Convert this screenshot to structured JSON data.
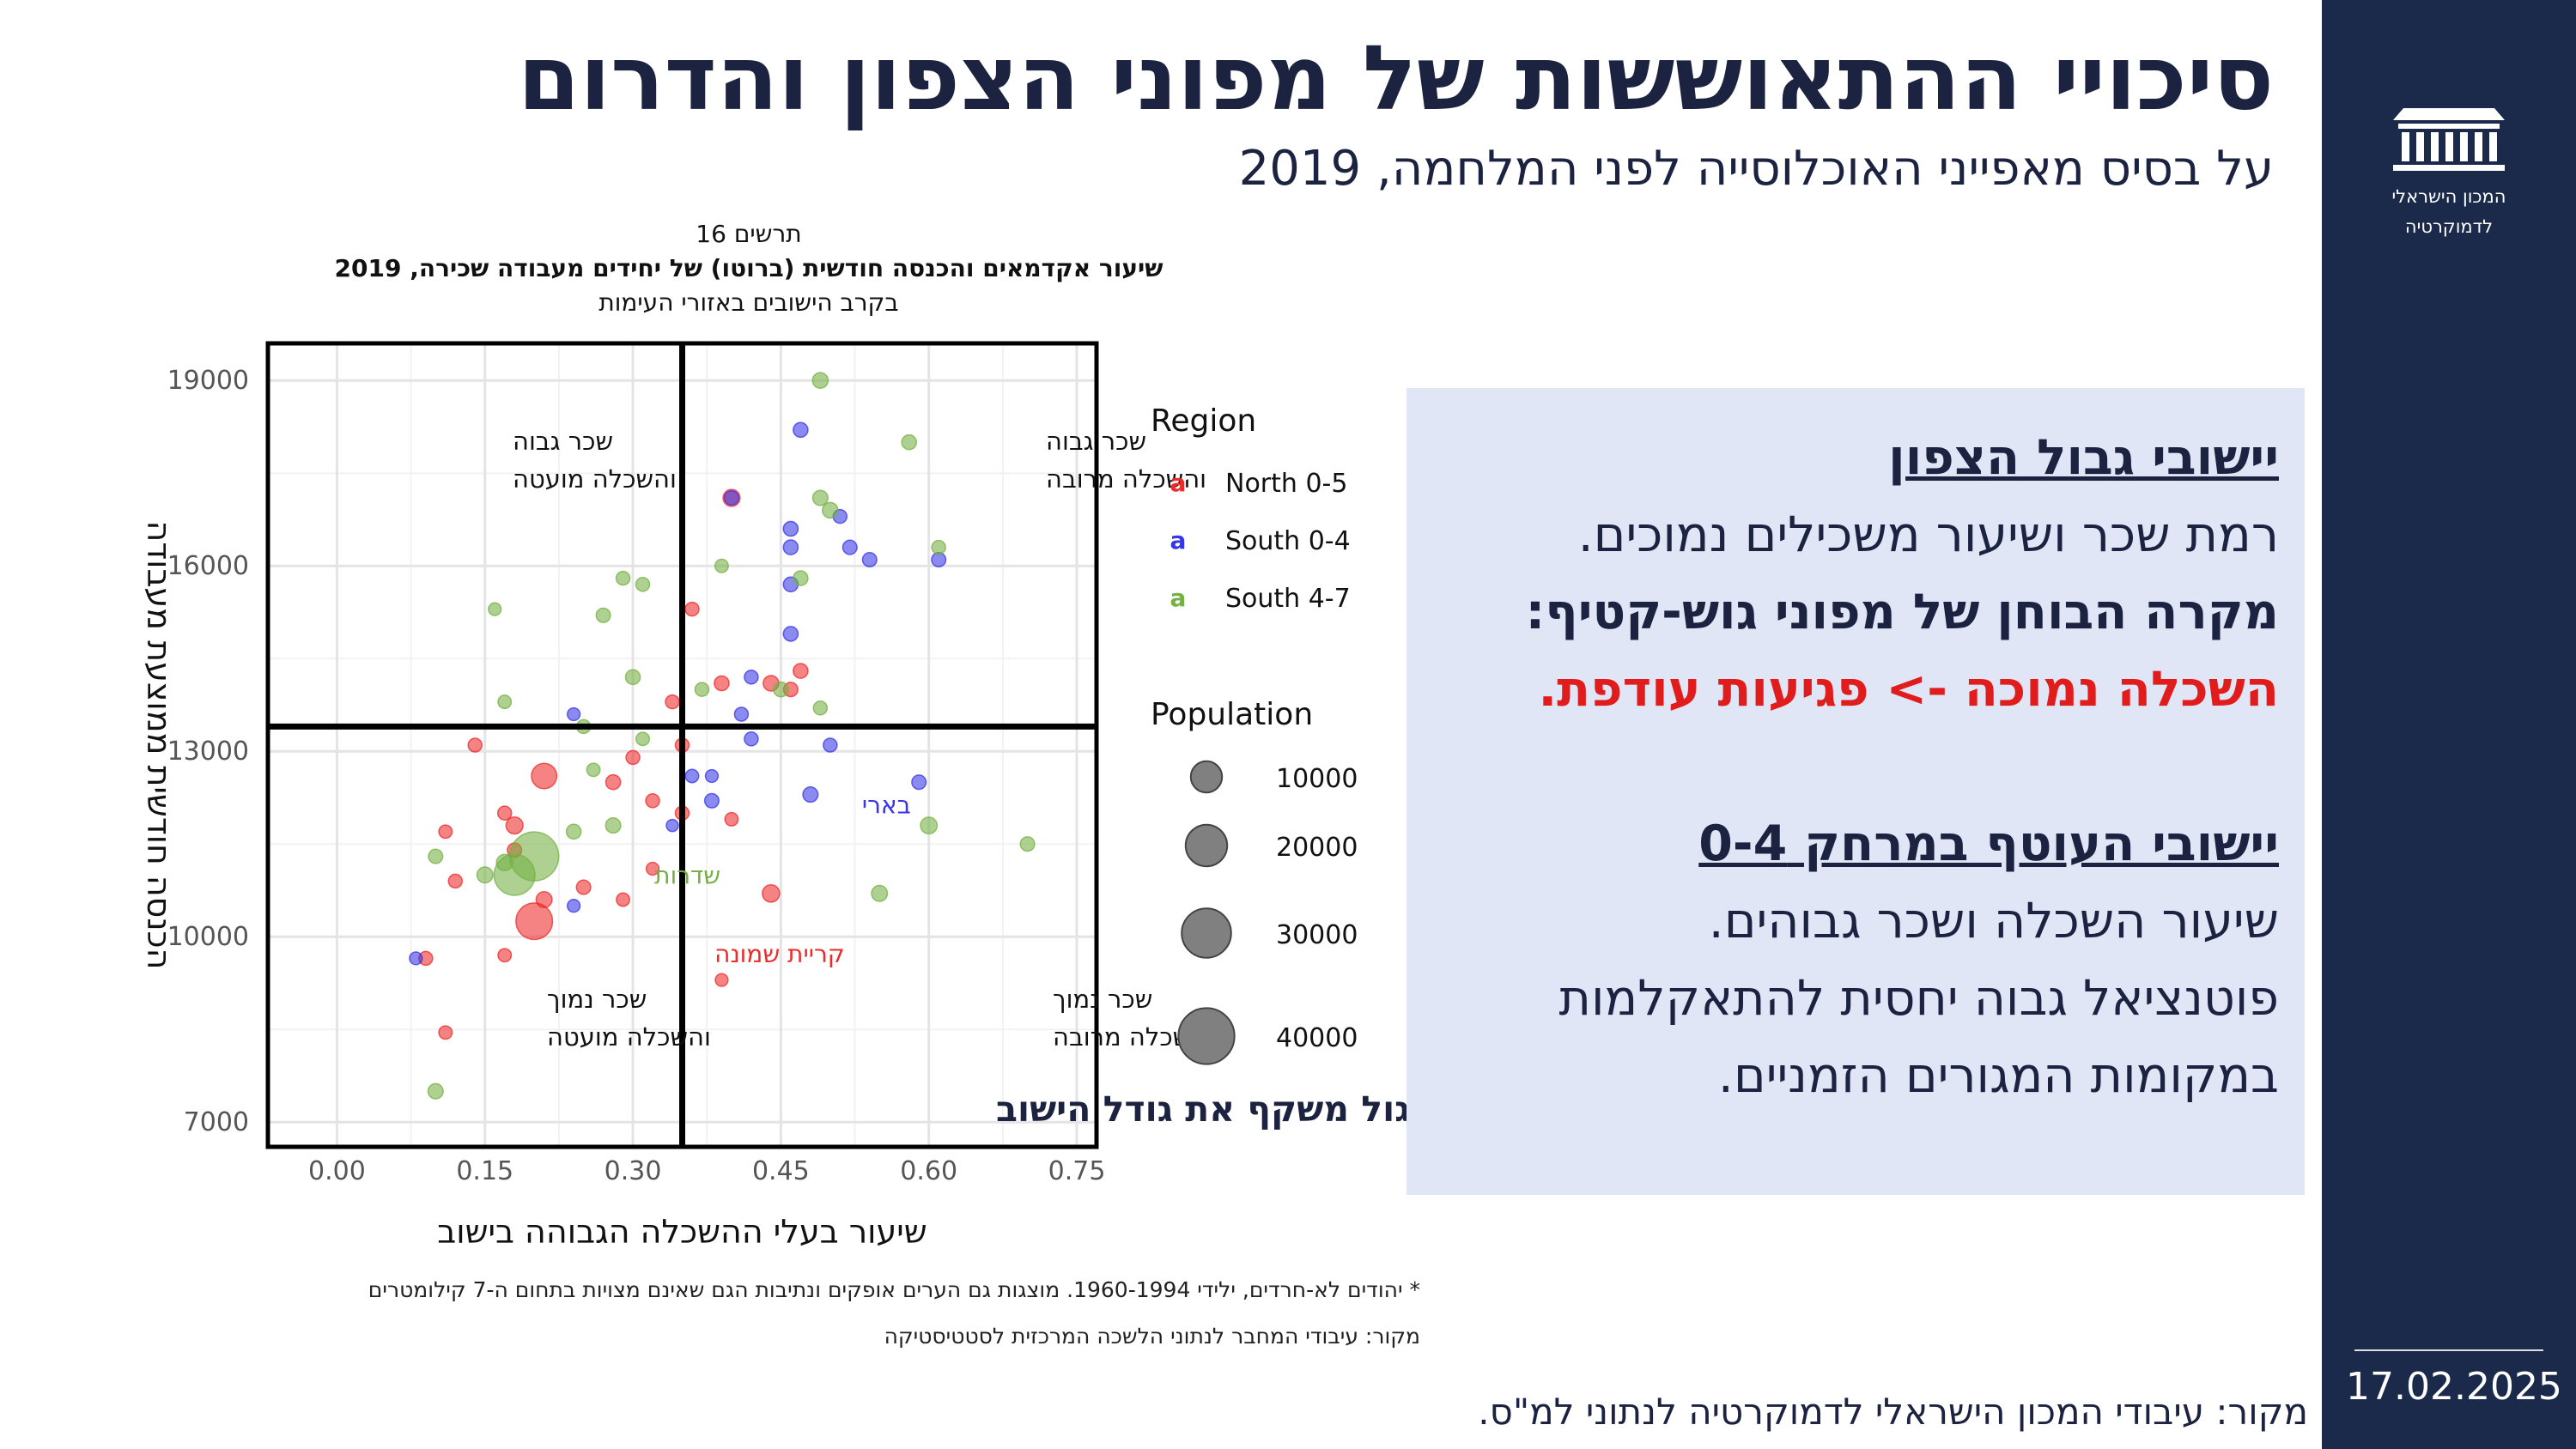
{
  "slide": {
    "title": "סיכויי ההתאוששות של מפוני הצפון והדרום",
    "subtitle": "על בסיס מאפייני האוכלוסייה לפני המלחמה, 2019",
    "date": "17.02.2025",
    "source": "מקור: עיבודי המכון הישראלי לדמוקרטיה לנתוני למ\"ס.",
    "logo_lines": [
      "המכון הישראלי",
      "לדמוקרטיה"
    ]
  },
  "panel": {
    "h1": "יישובי גבול הצפון",
    "l1": "רמת שכר ושיעור משכילים נמוכים.",
    "l2": "מקרה הבוחן של מפוני גוש-קטיף:",
    "l3": "השכלה נמוכה -> פגיעות עודפת.",
    "h2": "יישובי העוטף במרחק 0-4",
    "l4": "שיעור השכלה ושכר גבוהים.",
    "l5": "פוטנציאל גבוה יחסית להתאקלמות",
    "l6": "במקומות המגורים הזמניים."
  },
  "footnotes": {
    "note": "* יהודים לא-חרדים, ילידי 1960-1994. מוצגות גם הערים אופקים ונתיבות הגם שאינם מצויות בתחום ה-7 קילומטרים",
    "source": "מקור: עיבודי המחבר לנתוני הלשכה המרכזית לסטטיסטיקה"
  },
  "chart_data": {
    "type": "scatter",
    "title_lines": [
      "תרשים 16",
      "שיעור אקדמאים והכנסה חודשית (ברוטו) של יחידים מעבודה שכירה, 2019",
      "בקרב הישובים באזורי העימות"
    ],
    "xlabel": "שיעור בעלי ההשכלה הגבוהה בישוב",
    "ylabel": "הכנסה חודשית ממוצעת מעבודה",
    "xlim": [
      -0.07,
      0.77
    ],
    "ylim": [
      6600,
      19600
    ],
    "x_ticks": [
      "0.00",
      "0.15",
      "0.30",
      "0.45",
      "0.60",
      "0.75"
    ],
    "y_ticks": [
      "7000",
      "10000",
      "13000",
      "16000",
      "19000"
    ],
    "grid": true,
    "ref_lines": {
      "x": 0.35,
      "y": 13400
    },
    "quadrant_labels": {
      "top_left": [
        "שכר גבוה",
        "והשכלה מועטה"
      ],
      "top_right": [
        "שכר גבוה",
        "והשכלה מרובה"
      ],
      "bottom_left": [
        "שכר נמוך",
        "והשכלה מועטה"
      ],
      "bottom_right": [
        "שכר נמוך",
        "והשכלה מרובה"
      ]
    },
    "size_note": "גודל העיגול משקף את גודל הישוב",
    "legend_region_title": "Region",
    "legend_size_title": "Population",
    "series": [
      {
        "name": "North 0-5",
        "color": "#ee2a2a",
        "points": [
          {
            "x": 0.21,
            "y": 12600,
            "pop": 5000
          },
          {
            "x": 0.2,
            "y": 10250,
            "pop": 13000,
            "label": "קריית שמונה"
          },
          {
            "x": 0.18,
            "y": 11800,
            "pop": 1500
          },
          {
            "x": 0.17,
            "y": 12000,
            "pop": 700
          },
          {
            "x": 0.18,
            "y": 11400,
            "pop": 800
          },
          {
            "x": 0.21,
            "y": 10600,
            "pop": 1200
          },
          {
            "x": 0.25,
            "y": 10800,
            "pop": 800
          },
          {
            "x": 0.28,
            "y": 12500,
            "pop": 900
          },
          {
            "x": 0.3,
            "y": 12900,
            "pop": 700
          },
          {
            "x": 0.32,
            "y": 12200,
            "pop": 700
          },
          {
            "x": 0.35,
            "y": 12000,
            "pop": 700
          },
          {
            "x": 0.29,
            "y": 10600,
            "pop": 600
          },
          {
            "x": 0.4,
            "y": 17100,
            "pop": 1500
          },
          {
            "x": 0.39,
            "y": 14100,
            "pop": 900
          },
          {
            "x": 0.44,
            "y": 10700,
            "pop": 1600
          },
          {
            "x": 0.4,
            "y": 11900,
            "pop": 600
          },
          {
            "x": 0.36,
            "y": 15300,
            "pop": 700
          },
          {
            "x": 0.35,
            "y": 13100,
            "pop": 700
          },
          {
            "x": 0.34,
            "y": 13800,
            "pop": 700
          },
          {
            "x": 0.44,
            "y": 14100,
            "pop": 1100
          },
          {
            "x": 0.46,
            "y": 14000,
            "pop": 800
          },
          {
            "x": 0.47,
            "y": 14300,
            "pop": 900
          },
          {
            "x": 0.11,
            "y": 11700,
            "pop": 600
          },
          {
            "x": 0.12,
            "y": 10900,
            "pop": 700
          },
          {
            "x": 0.09,
            "y": 9650,
            "pop": 700
          },
          {
            "x": 0.11,
            "y": 8450,
            "pop": 600
          },
          {
            "x": 0.39,
            "y": 9300,
            "pop": 500
          },
          {
            "x": 0.14,
            "y": 13100,
            "pop": 700
          },
          {
            "x": 0.32,
            "y": 11100,
            "pop": 500
          },
          {
            "x": 0.17,
            "y": 9700,
            "pop": 600
          }
        ]
      },
      {
        "name": "South 0-4",
        "color": "#3636e6",
        "points": [
          {
            "x": 0.47,
            "y": 18200,
            "pop": 900
          },
          {
            "x": 0.4,
            "y": 17100,
            "pop": 800
          },
          {
            "x": 0.46,
            "y": 16600,
            "pop": 900
          },
          {
            "x": 0.46,
            "y": 16300,
            "pop": 900
          },
          {
            "x": 0.51,
            "y": 16800,
            "pop": 700
          },
          {
            "x": 0.52,
            "y": 16300,
            "pop": 800
          },
          {
            "x": 0.54,
            "y": 16100,
            "pop": 800
          },
          {
            "x": 0.61,
            "y": 16100,
            "pop": 800
          },
          {
            "x": 0.46,
            "y": 15700,
            "pop": 900
          },
          {
            "x": 0.46,
            "y": 14900,
            "pop": 900
          },
          {
            "x": 0.42,
            "y": 14200,
            "pop": 700
          },
          {
            "x": 0.41,
            "y": 13600,
            "pop": 700
          },
          {
            "x": 0.42,
            "y": 13200,
            "pop": 700
          },
          {
            "x": 0.5,
            "y": 13100,
            "pop": 700
          },
          {
            "x": 0.36,
            "y": 12600,
            "pop": 600
          },
          {
            "x": 0.38,
            "y": 12600,
            "pop": 500
          },
          {
            "x": 0.38,
            "y": 12200,
            "pop": 800
          },
          {
            "x": 0.48,
            "y": 12300,
            "pop": 1000,
            "label": "בארי"
          },
          {
            "x": 0.34,
            "y": 11800,
            "pop": 400
          },
          {
            "x": 0.24,
            "y": 10500,
            "pop": 500
          },
          {
            "x": 0.08,
            "y": 9650,
            "pop": 500
          },
          {
            "x": 0.24,
            "y": 13600,
            "pop": 500
          },
          {
            "x": 0.59,
            "y": 12500,
            "pop": 800
          }
        ]
      },
      {
        "name": "South 4-7",
        "color": "#74b043",
        "points": [
          {
            "x": 0.49,
            "y": 19000,
            "pop": 1100
          },
          {
            "x": 0.58,
            "y": 18000,
            "pop": 900
          },
          {
            "x": 0.49,
            "y": 17100,
            "pop": 1000
          },
          {
            "x": 0.5,
            "y": 16900,
            "pop": 1100
          },
          {
            "x": 0.61,
            "y": 16300,
            "pop": 700
          },
          {
            "x": 0.39,
            "y": 16000,
            "pop": 600
          },
          {
            "x": 0.29,
            "y": 15800,
            "pop": 700
          },
          {
            "x": 0.31,
            "y": 15700,
            "pop": 700
          },
          {
            "x": 0.16,
            "y": 15300,
            "pop": 500
          },
          {
            "x": 0.27,
            "y": 15200,
            "pop": 800
          },
          {
            "x": 0.47,
            "y": 15800,
            "pop": 900
          },
          {
            "x": 0.3,
            "y": 14200,
            "pop": 900
          },
          {
            "x": 0.37,
            "y": 14000,
            "pop": 700
          },
          {
            "x": 0.45,
            "y": 14000,
            "pop": 900
          },
          {
            "x": 0.17,
            "y": 13800,
            "pop": 600
          },
          {
            "x": 0.25,
            "y": 13400,
            "pop": 700
          },
          {
            "x": 0.31,
            "y": 13200,
            "pop": 600
          },
          {
            "x": 0.49,
            "y": 13700,
            "pop": 700
          },
          {
            "x": 0.26,
            "y": 12700,
            "pop": 600
          },
          {
            "x": 0.2,
            "y": 11300,
            "pop": 26000,
            "label": "שדרות"
          },
          {
            "x": 0.18,
            "y": 11000,
            "pop": 17000
          },
          {
            "x": 0.15,
            "y": 11000,
            "pop": 1200
          },
          {
            "x": 0.28,
            "y": 11800,
            "pop": 1000
          },
          {
            "x": 0.6,
            "y": 11800,
            "pop": 1400
          },
          {
            "x": 0.7,
            "y": 11500,
            "pop": 800
          },
          {
            "x": 0.1,
            "y": 11300,
            "pop": 800
          },
          {
            "x": 0.55,
            "y": 10700,
            "pop": 1200
          },
          {
            "x": 0.1,
            "y": 7500,
            "pop": 1000
          },
          {
            "x": 0.24,
            "y": 11700,
            "pop": 900
          },
          {
            "x": 0.17,
            "y": 11200,
            "pop": 1300
          }
        ]
      }
    ],
    "size_legend": [
      10000,
      20000,
      30000,
      40000
    ]
  }
}
